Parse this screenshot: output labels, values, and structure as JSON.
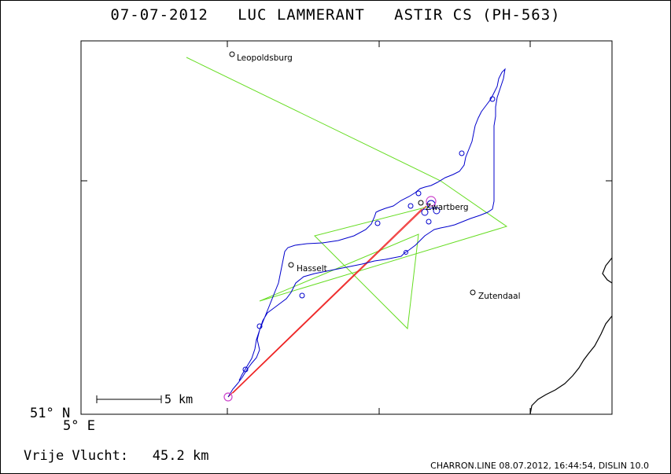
{
  "header": {
    "date": "07-07-2012",
    "pilot": "LUC LAMMERANT",
    "glider": "ASTIR CS (PH-563)"
  },
  "map": {
    "lat_label": "51° N",
    "lon_label": "5° E",
    "scale_label": "5 km",
    "towns": [
      {
        "name": "Leopoldsburg"
      },
      {
        "name": "Zwartberg"
      },
      {
        "name": "Hasselt"
      },
      {
        "name": "Zutendaal"
      }
    ],
    "colors": {
      "track": "#0000cc",
      "task": "#66dd22",
      "free_flight": "#ee2222",
      "turnpoint": "#cc44cc",
      "border": "#000000"
    }
  },
  "footer": {
    "free_flight_label": "Vrije Vlucht:",
    "free_flight_value": "45.2 km",
    "software": "CHARRON.LINE 08.07.2012, 16:44:54, DISLIN 10.0"
  }
}
